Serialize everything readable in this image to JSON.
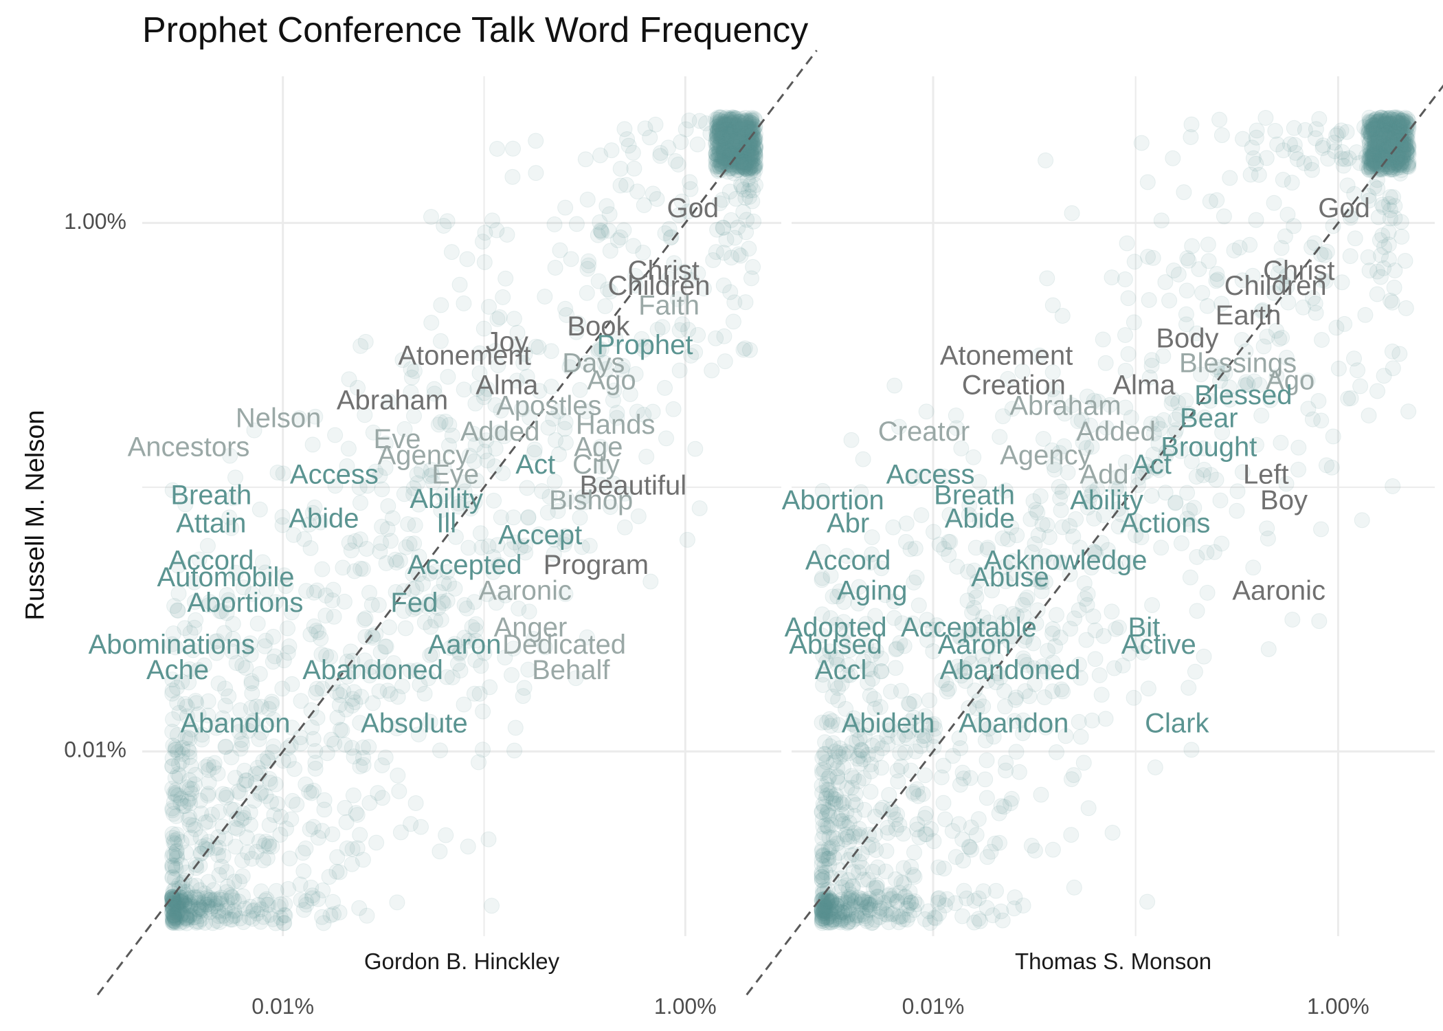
{
  "title": "Prophet Conference Talk Word Frequency",
  "colors": {
    "point": "#5b9491",
    "label_dark": "#707070",
    "label_teal": "#5b9491",
    "label_gray": "#9aa8a6",
    "grid": "#ebebeb",
    "diagonal": "#595959",
    "text": "#111111"
  },
  "chart_data": {
    "type": "scatter",
    "scale": "log10",
    "xlim": [
      2e-05,
      0.03
    ],
    "ylim": [
      2e-05,
      0.03
    ],
    "tick_values": [
      0.0001,
      0.01
    ],
    "tick_labels": [
      "0.01%",
      "1.00%"
    ],
    "ylabel": "Russell M. Nelson",
    "grid": true,
    "reference_line": "y = x",
    "panels": [
      {
        "xlabel": "Gordon B. Hinckley",
        "labels": [
          {
            "word": "God",
            "x": 0.0109,
            "y": 0.0112,
            "tone": "dark"
          },
          {
            "word": "Christ",
            "x": 0.0078,
            "y": 0.0065,
            "tone": "dark"
          },
          {
            "word": "Children",
            "x": 0.0074,
            "y": 0.0057,
            "tone": "dark"
          },
          {
            "word": "Faith",
            "x": 0.0083,
            "y": 0.0048,
            "tone": "gray"
          },
          {
            "word": "Book",
            "x": 0.0037,
            "y": 0.004,
            "tone": "dark"
          },
          {
            "word": "Joy",
            "x": 0.0013,
            "y": 0.0035,
            "tone": "dark"
          },
          {
            "word": "Prophet",
            "x": 0.0063,
            "y": 0.0034,
            "tone": "teal"
          },
          {
            "word": "Atonement",
            "x": 0.0008,
            "y": 0.0031,
            "tone": "dark"
          },
          {
            "word": "Days",
            "x": 0.0035,
            "y": 0.0029,
            "tone": "gray"
          },
          {
            "word": "Ago",
            "x": 0.0043,
            "y": 0.0025,
            "tone": "gray"
          },
          {
            "word": "Alma",
            "x": 0.0013,
            "y": 0.0024,
            "tone": "dark"
          },
          {
            "word": "Abraham",
            "x": 0.00035,
            "y": 0.0021,
            "tone": "dark"
          },
          {
            "word": "Apostles",
            "x": 0.0021,
            "y": 0.002,
            "tone": "gray"
          },
          {
            "word": "Nelson",
            "x": 9.5e-05,
            "y": 0.0018,
            "tone": "gray"
          },
          {
            "word": "Hands",
            "x": 0.0045,
            "y": 0.0017,
            "tone": "gray"
          },
          {
            "word": "Added",
            "x": 0.0012,
            "y": 0.0016,
            "tone": "gray"
          },
          {
            "word": "Eve",
            "x": 0.00037,
            "y": 0.0015,
            "tone": "gray"
          },
          {
            "word": "Ancestors",
            "x": 3.4e-05,
            "y": 0.0014,
            "tone": "gray"
          },
          {
            "word": "Age",
            "x": 0.0037,
            "y": 0.0014,
            "tone": "gray"
          },
          {
            "word": "Agency",
            "x": 0.0005,
            "y": 0.0013,
            "tone": "gray"
          },
          {
            "word": "City",
            "x": 0.0036,
            "y": 0.0012,
            "tone": "gray"
          },
          {
            "word": "Access",
            "x": 0.00018,
            "y": 0.0011,
            "tone": "teal"
          },
          {
            "word": "Eye",
            "x": 0.00072,
            "y": 0.0011,
            "tone": "gray"
          },
          {
            "word": "Act",
            "x": 0.0018,
            "y": 0.0012,
            "tone": "teal"
          },
          {
            "word": "Beautiful",
            "x": 0.0055,
            "y": 0.001,
            "tone": "dark"
          },
          {
            "word": "Breath",
            "x": 4.4e-05,
            "y": 0.00092,
            "tone": "teal"
          },
          {
            "word": "Ability",
            "x": 0.00065,
            "y": 0.00089,
            "tone": "teal"
          },
          {
            "word": "Bishop",
            "x": 0.0034,
            "y": 0.00088,
            "tone": "gray"
          },
          {
            "word": "Attain",
            "x": 4.4e-05,
            "y": 0.00072,
            "tone": "teal"
          },
          {
            "word": "Abide",
            "x": 0.00016,
            "y": 0.00075,
            "tone": "teal"
          },
          {
            "word": "Ill",
            "x": 0.00065,
            "y": 0.00072,
            "tone": "teal"
          },
          {
            "word": "Accept",
            "x": 0.0019,
            "y": 0.00065,
            "tone": "teal"
          },
          {
            "word": "Accord",
            "x": 4.4e-05,
            "y": 0.00052,
            "tone": "teal"
          },
          {
            "word": "Accepted",
            "x": 0.0008,
            "y": 0.0005,
            "tone": "teal"
          },
          {
            "word": "Program",
            "x": 0.0036,
            "y": 0.0005,
            "tone": "dark"
          },
          {
            "word": "Automobile",
            "x": 5.2e-05,
            "y": 0.00045,
            "tone": "teal"
          },
          {
            "word": "Aaronic",
            "x": 0.0016,
            "y": 0.0004,
            "tone": "gray"
          },
          {
            "word": "Abortions",
            "x": 6.5e-05,
            "y": 0.00036,
            "tone": "teal"
          },
          {
            "word": "Fed",
            "x": 0.00045,
            "y": 0.00036,
            "tone": "teal"
          },
          {
            "word": "Anger",
            "x": 0.0017,
            "y": 0.00029,
            "tone": "gray"
          },
          {
            "word": "Abominations",
            "x": 2.8e-05,
            "y": 0.00025,
            "tone": "teal"
          },
          {
            "word": "Aaron",
            "x": 0.0008,
            "y": 0.00025,
            "tone": "teal"
          },
          {
            "word": "Dedicated",
            "x": 0.0025,
            "y": 0.00025,
            "tone": "gray"
          },
          {
            "word": "Ache",
            "x": 3e-05,
            "y": 0.0002,
            "tone": "teal"
          },
          {
            "word": "Abandoned",
            "x": 0.00028,
            "y": 0.0002,
            "tone": "teal"
          },
          {
            "word": "Behalf",
            "x": 0.0027,
            "y": 0.0002,
            "tone": "gray"
          },
          {
            "word": "Abandon",
            "x": 5.8e-05,
            "y": 0.000126,
            "tone": "teal"
          },
          {
            "word": "Absolute",
            "x": 0.00045,
            "y": 0.000126,
            "tone": "teal"
          }
        ]
      },
      {
        "xlabel": "Thomas S. Monson",
        "labels": [
          {
            "word": "God",
            "x": 0.0107,
            "y": 0.0112,
            "tone": "dark"
          },
          {
            "word": "Christ",
            "x": 0.0064,
            "y": 0.0065,
            "tone": "dark"
          },
          {
            "word": "Children",
            "x": 0.0049,
            "y": 0.0057,
            "tone": "dark"
          },
          {
            "word": "Earth",
            "x": 0.0036,
            "y": 0.0044,
            "tone": "dark"
          },
          {
            "word": "Body",
            "x": 0.0018,
            "y": 0.0036,
            "tone": "dark"
          },
          {
            "word": "Atonement",
            "x": 0.00023,
            "y": 0.0031,
            "tone": "dark"
          },
          {
            "word": "Blessings",
            "x": 0.0032,
            "y": 0.0029,
            "tone": "gray"
          },
          {
            "word": "Ago",
            "x": 0.0058,
            "y": 0.0025,
            "tone": "gray"
          },
          {
            "word": "Creation",
            "x": 0.00025,
            "y": 0.0024,
            "tone": "dark"
          },
          {
            "word": "Alma",
            "x": 0.0011,
            "y": 0.0024,
            "tone": "dark"
          },
          {
            "word": "Blessed",
            "x": 0.0034,
            "y": 0.0022,
            "tone": "teal"
          },
          {
            "word": "Abraham",
            "x": 0.00045,
            "y": 0.002,
            "tone": "gray"
          },
          {
            "word": "Bear",
            "x": 0.0023,
            "y": 0.0018,
            "tone": "teal"
          },
          {
            "word": "Creator",
            "x": 9e-05,
            "y": 0.0016,
            "tone": "gray"
          },
          {
            "word": "Added",
            "x": 0.0008,
            "y": 0.0016,
            "tone": "gray"
          },
          {
            "word": "Brought",
            "x": 0.0023,
            "y": 0.0014,
            "tone": "teal"
          },
          {
            "word": "Agency",
            "x": 0.00036,
            "y": 0.0013,
            "tone": "gray"
          },
          {
            "word": "Act",
            "x": 0.0012,
            "y": 0.0012,
            "tone": "teal"
          },
          {
            "word": "Access",
            "x": 9.7e-05,
            "y": 0.0011,
            "tone": "teal"
          },
          {
            "word": "Add",
            "x": 0.0007,
            "y": 0.0011,
            "tone": "gray"
          },
          {
            "word": "Left",
            "x": 0.0044,
            "y": 0.0011,
            "tone": "dark"
          },
          {
            "word": "Abortion",
            "x": 3.2e-05,
            "y": 0.00088,
            "tone": "teal"
          },
          {
            "word": "Breath",
            "x": 0.00016,
            "y": 0.00092,
            "tone": "teal"
          },
          {
            "word": "Ability",
            "x": 0.00072,
            "y": 0.00088,
            "tone": "teal"
          },
          {
            "word": "Boy",
            "x": 0.0054,
            "y": 0.00088,
            "tone": "dark"
          },
          {
            "word": "Abr",
            "x": 3.8e-05,
            "y": 0.00072,
            "tone": "teal"
          },
          {
            "word": "Abide",
            "x": 0.00017,
            "y": 0.00075,
            "tone": "teal"
          },
          {
            "word": "Actions",
            "x": 0.0014,
            "y": 0.00072,
            "tone": "teal"
          },
          {
            "word": "Accord",
            "x": 3.8e-05,
            "y": 0.00052,
            "tone": "teal"
          },
          {
            "word": "Acknowledge",
            "x": 0.00045,
            "y": 0.00052,
            "tone": "teal"
          },
          {
            "word": "Abuse",
            "x": 0.00024,
            "y": 0.00045,
            "tone": "teal"
          },
          {
            "word": "Aging",
            "x": 5e-05,
            "y": 0.0004,
            "tone": "teal"
          },
          {
            "word": "Aaronic",
            "x": 0.0051,
            "y": 0.0004,
            "tone": "dark"
          },
          {
            "word": "Adopted",
            "x": 3.3e-05,
            "y": 0.00029,
            "tone": "teal"
          },
          {
            "word": "Acceptable",
            "x": 0.00015,
            "y": 0.00029,
            "tone": "teal"
          },
          {
            "word": "Bit",
            "x": 0.0011,
            "y": 0.00029,
            "tone": "teal"
          },
          {
            "word": "Abused",
            "x": 3.3e-05,
            "y": 0.00025,
            "tone": "teal"
          },
          {
            "word": "Aaron",
            "x": 0.00016,
            "y": 0.00025,
            "tone": "teal"
          },
          {
            "word": "Active",
            "x": 0.0013,
            "y": 0.00025,
            "tone": "teal"
          },
          {
            "word": "Accl",
            "x": 3.5e-05,
            "y": 0.0002,
            "tone": "teal"
          },
          {
            "word": "Abandoned",
            "x": 0.00024,
            "y": 0.0002,
            "tone": "teal"
          },
          {
            "word": "Abideth",
            "x": 6e-05,
            "y": 0.000126,
            "tone": "teal"
          },
          {
            "word": "Abandon",
            "x": 0.00025,
            "y": 0.000126,
            "tone": "teal"
          },
          {
            "word": "Clark",
            "x": 0.0016,
            "y": 0.000126,
            "tone": "teal"
          }
        ]
      }
    ]
  }
}
